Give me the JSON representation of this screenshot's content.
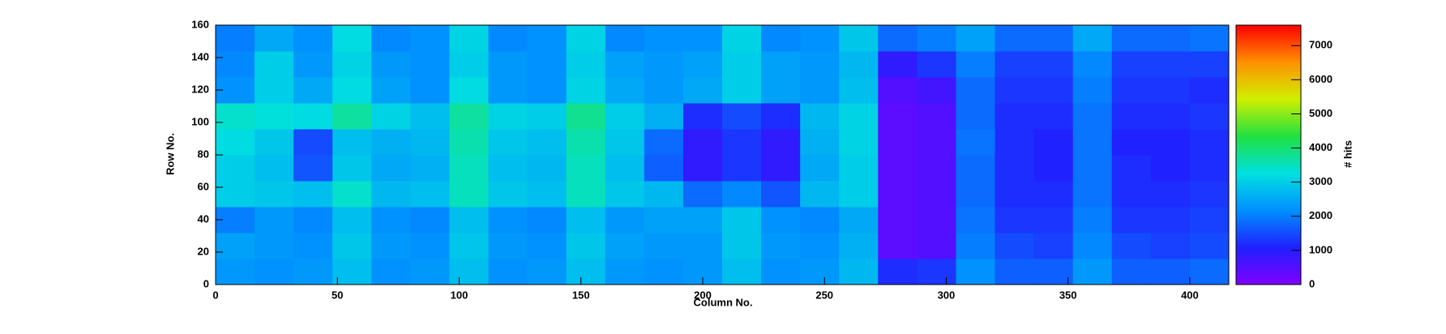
{
  "chart_data": {
    "type": "heatmap",
    "xlabel": "Column No.",
    "ylabel": "Row No.",
    "zlabel": "# hits",
    "xlim": [
      0,
      416
    ],
    "ylim": [
      0,
      160
    ],
    "zlim": [
      0,
      7600
    ],
    "xticks": [
      0,
      50,
      100,
      150,
      200,
      250,
      300,
      350,
      400
    ],
    "yticks": [
      0,
      20,
      40,
      60,
      80,
      100,
      120,
      140,
      160
    ],
    "zticks": [
      0,
      1000,
      2000,
      3000,
      4000,
      5000,
      6000,
      7000
    ],
    "colorscale": [
      "#7f00ff",
      "#2020ff",
      "#0090ff",
      "#00e0e0",
      "#20e040",
      "#d0f000",
      "#ff9000",
      "#ff0000"
    ],
    "xbins": [
      0,
      16,
      32,
      48,
      64,
      80,
      96,
      112,
      128,
      144,
      160,
      176,
      192,
      208,
      224,
      240,
      256,
      272,
      288,
      304,
      320,
      336,
      352,
      368,
      384,
      400,
      416
    ],
    "ybins": [
      0,
      16,
      32,
      48,
      64,
      80,
      96,
      112,
      128,
      144,
      160
    ],
    "z": [
      [
        2300,
        2200,
        2300,
        2800,
        2200,
        2300,
        2800,
        2200,
        2300,
        2800,
        2300,
        2200,
        2300,
        2800,
        2200,
        2300,
        2700,
        1200,
        1300,
        2200,
        1700,
        1700,
        2300,
        1700,
        1700,
        1800
      ],
      [
        2400,
        2300,
        2200,
        2900,
        2300,
        2200,
        2900,
        2300,
        2200,
        2900,
        2400,
        2300,
        2300,
        2900,
        2300,
        2200,
        2600,
        400,
        500,
        2000,
        1500,
        1400,
        2100,
        1500,
        1400,
        1500
      ],
      [
        2000,
        2300,
        2100,
        2800,
        2200,
        2100,
        2800,
        2200,
        2100,
        2800,
        2300,
        2400,
        2400,
        2900,
        2200,
        2100,
        2500,
        400,
        500,
        1900,
        1300,
        1300,
        2000,
        1300,
        1300,
        1400
      ],
      [
        3000,
        2900,
        2800,
        3400,
        2700,
        2800,
        3500,
        2900,
        2800,
        3500,
        2900,
        2700,
        1800,
        2100,
        1600,
        2700,
        3000,
        400,
        500,
        1800,
        1200,
        1200,
        1900,
        1200,
        1200,
        1300
      ],
      [
        3000,
        2800,
        1600,
        2900,
        2500,
        2600,
        3500,
        2800,
        2700,
        3500,
        2800,
        1700,
        900,
        1300,
        900,
        2500,
        3000,
        400,
        500,
        1800,
        1200,
        1100,
        1900,
        1200,
        1100,
        1200
      ],
      [
        3200,
        2900,
        1500,
        2800,
        2600,
        2700,
        3600,
        2900,
        2800,
        3600,
        2900,
        1800,
        900,
        1300,
        900,
        2600,
        3100,
        400,
        500,
        1900,
        1200,
        1100,
        1900,
        1100,
        1100,
        1200
      ],
      [
        3400,
        3300,
        3200,
        3700,
        3100,
        2800,
        3700,
        3100,
        3000,
        3800,
        3000,
        2600,
        1200,
        1500,
        1200,
        2700,
        3100,
        400,
        500,
        1800,
        1200,
        1200,
        1900,
        1200,
        1200,
        1300
      ],
      [
        2200,
        3000,
        2500,
        3200,
        2400,
        2200,
        3200,
        2300,
        2200,
        3100,
        2500,
        2300,
        2500,
        3000,
        2400,
        2300,
        2800,
        500,
        700,
        1800,
        1300,
        1300,
        2000,
        1300,
        1300,
        1200
      ],
      [
        2100,
        3000,
        2300,
        3100,
        2300,
        2200,
        3000,
        2300,
        2200,
        3000,
        2400,
        2300,
        2400,
        3000,
        2400,
        2300,
        2700,
        900,
        1300,
        2000,
        1400,
        1400,
        2100,
        1400,
        1400,
        1400
      ],
      [
        2000,
        2500,
        2200,
        3200,
        2100,
        2200,
        3100,
        2100,
        2200,
        3100,
        2100,
        2200,
        2200,
        3100,
        2100,
        2200,
        2900,
        1800,
        2000,
        2400,
        1800,
        1800,
        2500,
        1800,
        1800,
        1900
      ]
    ]
  }
}
